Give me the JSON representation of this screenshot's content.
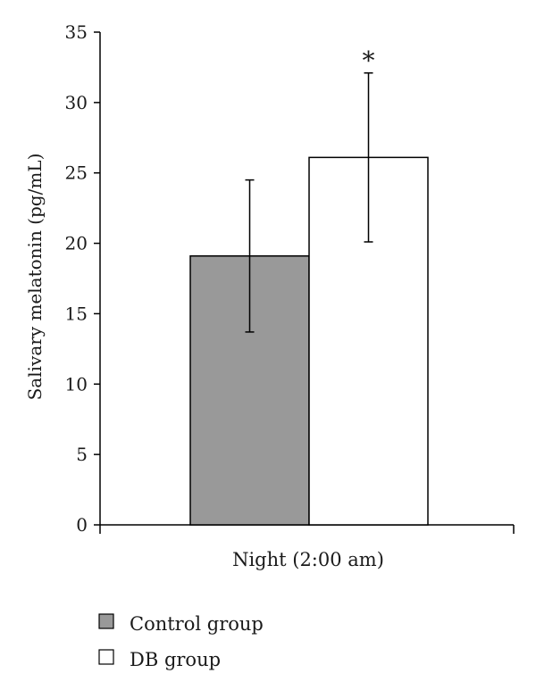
{
  "chart_data": {
    "type": "bar",
    "categories": [
      "Night (2:00 am)"
    ],
    "series": [
      {
        "name": "Control group",
        "values": [
          19.1
        ],
        "error": [
          5.4
        ],
        "color": "#999999"
      },
      {
        "name": "DB group",
        "values": [
          26.1
        ],
        "error": [
          6.0
        ],
        "color": "#ffffff"
      }
    ],
    "ylabel": "Salivary melatonin (pg/mL)",
    "xlabel": "",
    "ylim": [
      0,
      35
    ],
    "yticks": [
      0,
      5,
      10,
      15,
      20,
      25,
      30,
      35
    ],
    "annotations": [
      {
        "text": "*",
        "series": "DB group"
      }
    ],
    "legend_position": "bottom-left",
    "grid": false
  }
}
